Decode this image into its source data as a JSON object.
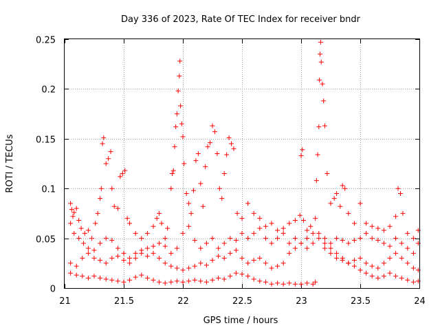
{
  "chart_data": {
    "type": "scatter",
    "title": "Day 336 of 2023, Rate Of TEC Index for receiver bndr",
    "xlabel": "GPS time / hours",
    "ylabel": "ROTI / TECUs",
    "xlim": [
      21,
      24
    ],
    "ylim": [
      0,
      0.25
    ],
    "x_ticks": [
      "21",
      "21.5",
      "22",
      "22.5",
      "23",
      "23.5",
      "24"
    ],
    "y_ticks": [
      "0",
      "0.05",
      "0.1",
      "0.15",
      "0.2",
      "0.25"
    ],
    "grid": true,
    "marker": "+",
    "color": "#ff0000",
    "series": [
      {
        "name": "",
        "points": [
          [
            21.05,
            0.085
          ],
          [
            21.06,
            0.079
          ],
          [
            21.07,
            0.072
          ],
          [
            21.08,
            0.076
          ],
          [
            21.1,
            0.08
          ],
          [
            21.12,
            0.068
          ],
          [
            21.14,
            0.06
          ],
          [
            21.17,
            0.055
          ],
          [
            21.2,
            0.058
          ],
          [
            21.23,
            0.05
          ],
          [
            21.26,
            0.065
          ],
          [
            21.28,
            0.075
          ],
          [
            21.3,
            0.09
          ],
          [
            21.31,
            0.1
          ],
          [
            21.32,
            0.145
          ],
          [
            21.33,
            0.151
          ],
          [
            21.35,
            0.125
          ],
          [
            21.37,
            0.13
          ],
          [
            21.39,
            0.137
          ],
          [
            21.4,
            0.1
          ],
          [
            21.42,
            0.082
          ],
          [
            21.45,
            0.08
          ],
          [
            21.47,
            0.112
          ],
          [
            21.49,
            0.115
          ],
          [
            21.51,
            0.118
          ],
          [
            21.53,
            0.07
          ],
          [
            21.55,
            0.065
          ],
          [
            21.6,
            0.055
          ],
          [
            21.65,
            0.05
          ],
          [
            21.7,
            0.055
          ],
          [
            21.75,
            0.062
          ],
          [
            21.78,
            0.07
          ],
          [
            21.8,
            0.075
          ],
          [
            21.82,
            0.065
          ],
          [
            21.85,
            0.05
          ],
          [
            21.87,
            0.06
          ],
          [
            21.9,
            0.1
          ],
          [
            21.91,
            0.115
          ],
          [
            21.92,
            0.118
          ],
          [
            21.93,
            0.142
          ],
          [
            21.94,
            0.162
          ],
          [
            21.95,
            0.175
          ],
          [
            21.96,
            0.198
          ],
          [
            21.97,
            0.213
          ],
          [
            21.975,
            0.228
          ],
          [
            21.98,
            0.183
          ],
          [
            21.99,
            0.165
          ],
          [
            22.0,
            0.152
          ],
          [
            22.01,
            0.125
          ],
          [
            22.03,
            0.095
          ],
          [
            22.05,
            0.085
          ],
          [
            22.07,
            0.075
          ],
          [
            22.09,
            0.098
          ],
          [
            22.11,
            0.128
          ],
          [
            22.13,
            0.135
          ],
          [
            22.15,
            0.105
          ],
          [
            22.17,
            0.082
          ],
          [
            22.19,
            0.122
          ],
          [
            22.21,
            0.142
          ],
          [
            22.23,
            0.146
          ],
          [
            22.25,
            0.163
          ],
          [
            22.27,
            0.157
          ],
          [
            22.29,
            0.135
          ],
          [
            22.31,
            0.1
          ],
          [
            22.33,
            0.09
          ],
          [
            22.35,
            0.115
          ],
          [
            22.37,
            0.134
          ],
          [
            22.39,
            0.151
          ],
          [
            22.41,
            0.145
          ],
          [
            22.43,
            0.14
          ],
          [
            22.46,
            0.075
          ],
          [
            22.5,
            0.07
          ],
          [
            22.55,
            0.085
          ],
          [
            22.6,
            0.075
          ],
          [
            22.65,
            0.07
          ],
          [
            22.7,
            0.062
          ],
          [
            22.75,
            0.065
          ],
          [
            22.8,
            0.058
          ],
          [
            22.85,
            0.06
          ],
          [
            22.9,
            0.065
          ],
          [
            22.95,
            0.068
          ],
          [
            22.99,
            0.073
          ],
          [
            23.0,
            0.133
          ],
          [
            23.01,
            0.139
          ],
          [
            23.02,
            0.068
          ],
          [
            23.05,
            0.058
          ],
          [
            23.08,
            0.062
          ],
          [
            23.12,
            0.07
          ],
          [
            23.13,
            0.108
          ],
          [
            23.14,
            0.134
          ],
          [
            23.15,
            0.162
          ],
          [
            23.155,
            0.209
          ],
          [
            23.16,
            0.235
          ],
          [
            23.165,
            0.247
          ],
          [
            23.17,
            0.227
          ],
          [
            23.18,
            0.205
          ],
          [
            23.19,
            0.188
          ],
          [
            23.2,
            0.163
          ],
          [
            23.22,
            0.115
          ],
          [
            23.25,
            0.085
          ],
          [
            23.28,
            0.09
          ],
          [
            23.3,
            0.095
          ],
          [
            23.33,
            0.082
          ],
          [
            23.35,
            0.103
          ],
          [
            23.37,
            0.1
          ],
          [
            23.4,
            0.075
          ],
          [
            23.45,
            0.065
          ],
          [
            23.5,
            0.085
          ],
          [
            23.55,
            0.065
          ],
          [
            23.6,
            0.062
          ],
          [
            23.65,
            0.06
          ],
          [
            23.7,
            0.058
          ],
          [
            23.75,
            0.062
          ],
          [
            23.8,
            0.072
          ],
          [
            23.82,
            0.1
          ],
          [
            23.84,
            0.095
          ],
          [
            23.86,
            0.075
          ],
          [
            23.9,
            0.055
          ],
          [
            23.95,
            0.05
          ],
          [
            23.99,
            0.058
          ],
          [
            21.05,
            0.065
          ],
          [
            21.08,
            0.055
          ],
          [
            21.12,
            0.05
          ],
          [
            21.16,
            0.045
          ],
          [
            21.2,
            0.04
          ],
          [
            21.25,
            0.038
          ],
          [
            21.3,
            0.045
          ],
          [
            21.35,
            0.05
          ],
          [
            21.4,
            0.048
          ],
          [
            21.45,
            0.04
          ],
          [
            21.5,
            0.035
          ],
          [
            21.55,
            0.03
          ],
          [
            21.6,
            0.035
          ],
          [
            21.65,
            0.038
          ],
          [
            21.7,
            0.04
          ],
          [
            21.75,
            0.042
          ],
          [
            21.8,
            0.045
          ],
          [
            21.85,
            0.042
          ],
          [
            21.9,
            0.035
          ],
          [
            21.95,
            0.04
          ],
          [
            22.0,
            0.055
          ],
          [
            22.05,
            0.062
          ],
          [
            22.1,
            0.048
          ],
          [
            22.15,
            0.04
          ],
          [
            22.2,
            0.045
          ],
          [
            22.25,
            0.05
          ],
          [
            22.3,
            0.04
          ],
          [
            22.35,
            0.045
          ],
          [
            22.4,
            0.05
          ],
          [
            22.45,
            0.048
          ],
          [
            22.5,
            0.055
          ],
          [
            22.55,
            0.05
          ],
          [
            22.6,
            0.055
          ],
          [
            22.65,
            0.06
          ],
          [
            22.7,
            0.05
          ],
          [
            22.75,
            0.045
          ],
          [
            22.8,
            0.05
          ],
          [
            22.85,
            0.055
          ],
          [
            22.9,
            0.045
          ],
          [
            22.95,
            0.05
          ],
          [
            23.0,
            0.045
          ],
          [
            23.05,
            0.04
          ],
          [
            23.1,
            0.045
          ],
          [
            23.15,
            0.055
          ],
          [
            23.2,
            0.05
          ],
          [
            23.25,
            0.045
          ],
          [
            23.3,
            0.05
          ],
          [
            23.35,
            0.048
          ],
          [
            23.4,
            0.045
          ],
          [
            23.45,
            0.048
          ],
          [
            23.5,
            0.05
          ],
          [
            23.55,
            0.055
          ],
          [
            23.6,
            0.05
          ],
          [
            23.65,
            0.048
          ],
          [
            23.7,
            0.045
          ],
          [
            23.75,
            0.042
          ],
          [
            23.8,
            0.05
          ],
          [
            23.85,
            0.045
          ],
          [
            23.9,
            0.04
          ],
          [
            23.95,
            0.035
          ],
          [
            23.99,
            0.045
          ],
          [
            21.05,
            0.025
          ],
          [
            21.1,
            0.022
          ],
          [
            21.15,
            0.03
          ],
          [
            21.2,
            0.035
          ],
          [
            21.25,
            0.03
          ],
          [
            21.3,
            0.028
          ],
          [
            21.35,
            0.025
          ],
          [
            21.4,
            0.03
          ],
          [
            21.45,
            0.032
          ],
          [
            21.5,
            0.028
          ],
          [
            21.55,
            0.025
          ],
          [
            21.6,
            0.03
          ],
          [
            21.65,
            0.035
          ],
          [
            21.7,
            0.032
          ],
          [
            21.75,
            0.035
          ],
          [
            21.8,
            0.03
          ],
          [
            21.85,
            0.025
          ],
          [
            21.9,
            0.022
          ],
          [
            21.95,
            0.02
          ],
          [
            22.0,
            0.018
          ],
          [
            22.05,
            0.02
          ],
          [
            22.1,
            0.022
          ],
          [
            22.15,
            0.025
          ],
          [
            22.2,
            0.023
          ],
          [
            22.25,
            0.028
          ],
          [
            22.3,
            0.032
          ],
          [
            22.35,
            0.03
          ],
          [
            22.4,
            0.035
          ],
          [
            22.45,
            0.038
          ],
          [
            22.5,
            0.03
          ],
          [
            22.55,
            0.025
          ],
          [
            22.6,
            0.028
          ],
          [
            22.65,
            0.03
          ],
          [
            22.7,
            0.025
          ],
          [
            22.75,
            0.02
          ],
          [
            22.8,
            0.022
          ],
          [
            22.85,
            0.025
          ],
          [
            22.9,
            0.035
          ],
          [
            22.95,
            0.04
          ],
          [
            23.0,
            0.045
          ],
          [
            23.05,
            0.05
          ],
          [
            23.1,
            0.055
          ],
          [
            23.15,
            0.05
          ],
          [
            23.2,
            0.045
          ],
          [
            23.25,
            0.04
          ],
          [
            23.3,
            0.035
          ],
          [
            23.35,
            0.03
          ],
          [
            23.4,
            0.025
          ],
          [
            23.45,
            0.028
          ],
          [
            23.5,
            0.03
          ],
          [
            23.55,
            0.025
          ],
          [
            23.6,
            0.022
          ],
          [
            23.65,
            0.02
          ],
          [
            23.7,
            0.025
          ],
          [
            23.75,
            0.03
          ],
          [
            23.8,
            0.035
          ],
          [
            23.85,
            0.03
          ],
          [
            23.9,
            0.025
          ],
          [
            23.95,
            0.02
          ],
          [
            23.99,
            0.018
          ],
          [
            21.05,
            0.015
          ],
          [
            21.1,
            0.013
          ],
          [
            21.15,
            0.012
          ],
          [
            21.2,
            0.01
          ],
          [
            21.25,
            0.012
          ],
          [
            21.3,
            0.01
          ],
          [
            21.35,
            0.009
          ],
          [
            21.4,
            0.008
          ],
          [
            21.45,
            0.007
          ],
          [
            21.5,
            0.006
          ],
          [
            21.55,
            0.008
          ],
          [
            21.6,
            0.011
          ],
          [
            21.65,
            0.013
          ],
          [
            21.7,
            0.01
          ],
          [
            21.75,
            0.008
          ],
          [
            21.8,
            0.006
          ],
          [
            21.85,
            0.005
          ],
          [
            21.9,
            0.006
          ],
          [
            21.95,
            0.007
          ],
          [
            22.0,
            0.006
          ],
          [
            22.05,
            0.007
          ],
          [
            22.1,
            0.008
          ],
          [
            22.15,
            0.007
          ],
          [
            22.2,
            0.006
          ],
          [
            22.25,
            0.008
          ],
          [
            22.3,
            0.01
          ],
          [
            22.35,
            0.009
          ],
          [
            22.4,
            0.012
          ],
          [
            22.45,
            0.015
          ],
          [
            22.5,
            0.014
          ],
          [
            22.55,
            0.012
          ],
          [
            22.6,
            0.009
          ],
          [
            22.65,
            0.007
          ],
          [
            22.7,
            0.006
          ],
          [
            22.75,
            0.004
          ],
          [
            22.8,
            0.005
          ],
          [
            22.85,
            0.004
          ],
          [
            22.9,
            0.005
          ],
          [
            22.95,
            0.004
          ],
          [
            23.0,
            0.004
          ],
          [
            23.05,
            0.005
          ],
          [
            23.1,
            0.004
          ],
          [
            23.12,
            0.006
          ],
          [
            23.2,
            0.04
          ],
          [
            23.25,
            0.035
          ],
          [
            23.3,
            0.03
          ],
          [
            23.35,
            0.028
          ],
          [
            23.4,
            0.025
          ],
          [
            23.45,
            0.022
          ],
          [
            23.5,
            0.018
          ],
          [
            23.55,
            0.015
          ],
          [
            23.6,
            0.012
          ],
          [
            23.65,
            0.01
          ],
          [
            23.7,
            0.012
          ],
          [
            23.75,
            0.015
          ],
          [
            23.8,
            0.012
          ],
          [
            23.85,
            0.01
          ],
          [
            23.9,
            0.008
          ],
          [
            23.95,
            0.006
          ],
          [
            23.99,
            0.007
          ]
        ]
      }
    ]
  }
}
